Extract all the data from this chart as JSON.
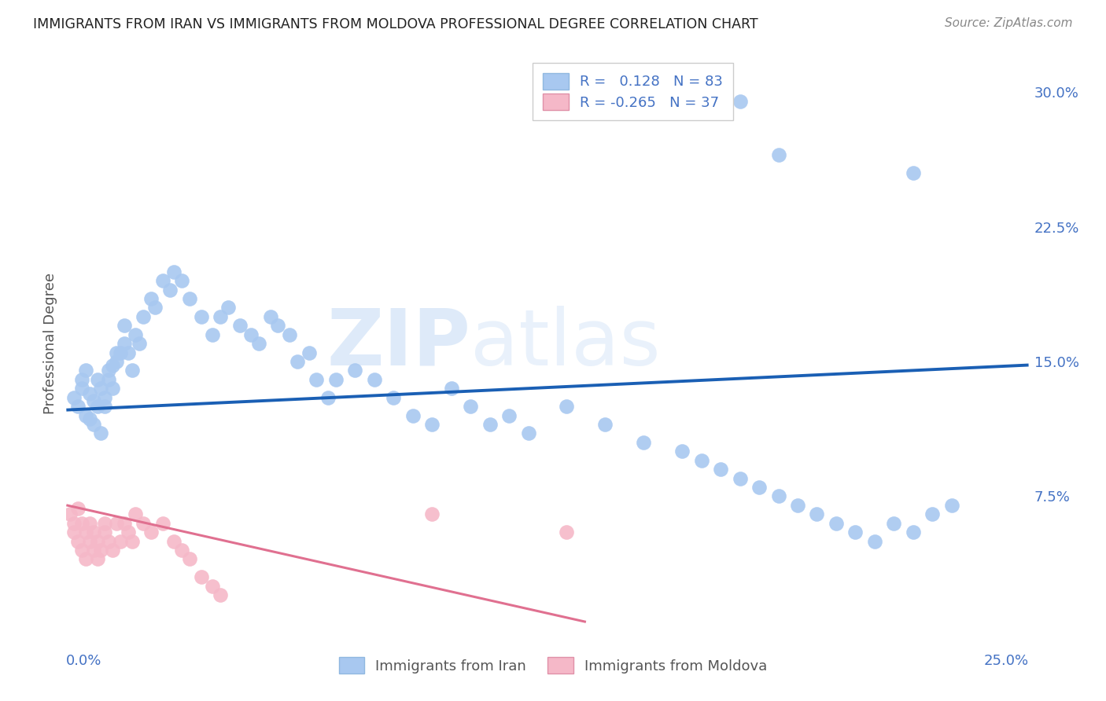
{
  "title": "IMMIGRANTS FROM IRAN VS IMMIGRANTS FROM MOLDOVA PROFESSIONAL DEGREE CORRELATION CHART",
  "source": "Source: ZipAtlas.com",
  "ylabel": "Professional Degree",
  "xlim": [
    0.0,
    0.25
  ],
  "ylim": [
    0.0,
    0.32
  ],
  "legend_R_iran": "0.128",
  "legend_N_iran": "83",
  "legend_R_moldova": "-0.265",
  "legend_N_moldova": "37",
  "iran_color": "#a8c8f0",
  "moldova_color": "#f5b8c8",
  "iran_line_color": "#1a5fb4",
  "moldova_line_color": "#e07090",
  "background_color": "#ffffff",
  "grid_color": "#cccccc",
  "iran_x": [
    0.002,
    0.003,
    0.004,
    0.004,
    0.005,
    0.005,
    0.006,
    0.006,
    0.007,
    0.007,
    0.008,
    0.008,
    0.009,
    0.009,
    0.01,
    0.01,
    0.011,
    0.011,
    0.012,
    0.012,
    0.013,
    0.013,
    0.014,
    0.015,
    0.015,
    0.016,
    0.017,
    0.018,
    0.019,
    0.02,
    0.022,
    0.023,
    0.025,
    0.027,
    0.028,
    0.03,
    0.032,
    0.035,
    0.038,
    0.04,
    0.042,
    0.045,
    0.048,
    0.05,
    0.053,
    0.055,
    0.058,
    0.06,
    0.063,
    0.065,
    0.068,
    0.07,
    0.075,
    0.08,
    0.085,
    0.09,
    0.095,
    0.1,
    0.105,
    0.11,
    0.115,
    0.12,
    0.13,
    0.14,
    0.15,
    0.16,
    0.165,
    0.17,
    0.175,
    0.18,
    0.185,
    0.19,
    0.195,
    0.2,
    0.205,
    0.21,
    0.215,
    0.22,
    0.225,
    0.23,
    0.175,
    0.185,
    0.22
  ],
  "iran_y": [
    0.13,
    0.125,
    0.14,
    0.135,
    0.12,
    0.145,
    0.118,
    0.132,
    0.115,
    0.128,
    0.14,
    0.125,
    0.135,
    0.11,
    0.13,
    0.125,
    0.145,
    0.14,
    0.148,
    0.135,
    0.155,
    0.15,
    0.155,
    0.17,
    0.16,
    0.155,
    0.145,
    0.165,
    0.16,
    0.175,
    0.185,
    0.18,
    0.195,
    0.19,
    0.2,
    0.195,
    0.185,
    0.175,
    0.165,
    0.175,
    0.18,
    0.17,
    0.165,
    0.16,
    0.175,
    0.17,
    0.165,
    0.15,
    0.155,
    0.14,
    0.13,
    0.14,
    0.145,
    0.14,
    0.13,
    0.12,
    0.115,
    0.135,
    0.125,
    0.115,
    0.12,
    0.11,
    0.125,
    0.115,
    0.105,
    0.1,
    0.095,
    0.09,
    0.085,
    0.08,
    0.075,
    0.07,
    0.065,
    0.06,
    0.055,
    0.05,
    0.06,
    0.055,
    0.065,
    0.07,
    0.295,
    0.265,
    0.255
  ],
  "moldova_x": [
    0.001,
    0.002,
    0.002,
    0.003,
    0.003,
    0.004,
    0.004,
    0.005,
    0.005,
    0.006,
    0.006,
    0.007,
    0.007,
    0.008,
    0.008,
    0.009,
    0.01,
    0.01,
    0.011,
    0.012,
    0.013,
    0.014,
    0.015,
    0.016,
    0.017,
    0.018,
    0.02,
    0.022,
    0.025,
    0.028,
    0.03,
    0.032,
    0.035,
    0.038,
    0.04,
    0.095,
    0.13
  ],
  "moldova_y": [
    0.065,
    0.06,
    0.055,
    0.068,
    0.05,
    0.06,
    0.045,
    0.055,
    0.04,
    0.06,
    0.05,
    0.055,
    0.045,
    0.05,
    0.04,
    0.045,
    0.06,
    0.055,
    0.05,
    0.045,
    0.06,
    0.05,
    0.06,
    0.055,
    0.05,
    0.065,
    0.06,
    0.055,
    0.06,
    0.05,
    0.045,
    0.04,
    0.03,
    0.025,
    0.02,
    0.065,
    0.055
  ]
}
